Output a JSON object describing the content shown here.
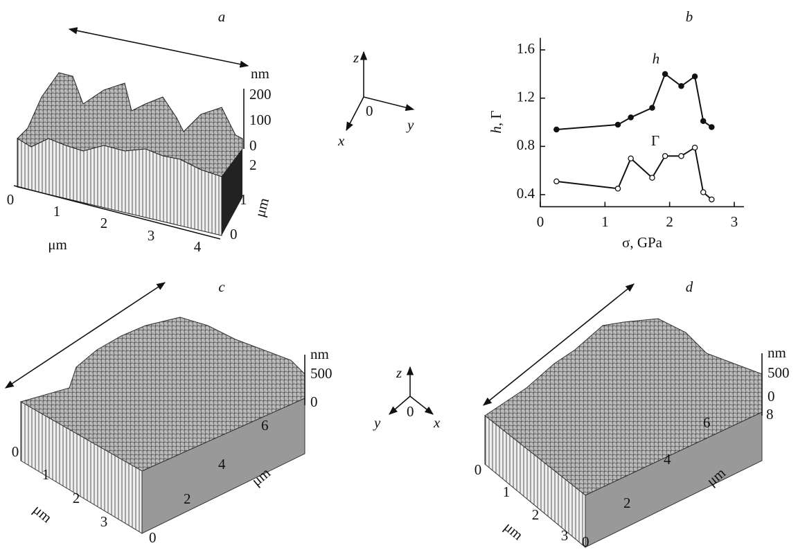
{
  "panels": [
    {
      "label": "a",
      "unit": "nm",
      "z_ticks": [
        200,
        100,
        0
      ],
      "depth_ticks": [
        2,
        1,
        0
      ],
      "depth_label": "μm",
      "x_ticks": [
        0,
        1,
        2,
        3,
        4
      ],
      "x_label": "μm"
    },
    {
      "label": "c",
      "unit": "nm",
      "z_ticks": [
        500,
        0
      ],
      "depth_ticks": [
        0,
        2,
        4,
        6
      ],
      "depth_label": "μm",
      "x_ticks": [
        0,
        1,
        2,
        3
      ],
      "x_label": "μm"
    },
    {
      "label": "d",
      "unit": "nm",
      "z_ticks": [
        500,
        0
      ],
      "depth_ticks": [
        0,
        2,
        4,
        6,
        8
      ],
      "depth_label": "μm",
      "x_ticks": [
        0,
        1,
        2,
        3
      ],
      "x_label": "μm"
    }
  ],
  "triads": [
    {
      "z": "z",
      "y": "y",
      "x": "x",
      "origin": "0"
    },
    {
      "z": "z",
      "y": "y",
      "x": "x",
      "origin": "0"
    }
  ],
  "chart_data": {
    "type": "line",
    "panel_label": "b",
    "x_label": "σ, GPa",
    "y_label_italic": "h",
    "y_label_rest": ", Γ",
    "xlim": [
      0,
      3.15
    ],
    "ylim": [
      0.3,
      1.7
    ],
    "xticks": [
      0,
      1,
      2,
      3
    ],
    "yticks": [
      0.4,
      0.8,
      1.2,
      1.6
    ],
    "series": [
      {
        "name": "h",
        "color": "#111111",
        "marker": "filled",
        "x": [
          0.25,
          1.2,
          1.4,
          1.73,
          1.93,
          2.18,
          2.39,
          2.52,
          2.65
        ],
        "values": [
          0.94,
          0.98,
          1.04,
          1.12,
          1.4,
          1.3,
          1.38,
          1.01,
          0.96
        ]
      },
      {
        "name": "Γ",
        "color": "#111111",
        "marker": "open",
        "x": [
          0.25,
          1.2,
          1.4,
          1.73,
          1.93,
          2.18,
          2.39,
          2.52,
          2.65
        ],
        "values": [
          0.51,
          0.45,
          0.7,
          0.54,
          0.72,
          0.72,
          0.79,
          0.42,
          0.36
        ]
      }
    ]
  }
}
